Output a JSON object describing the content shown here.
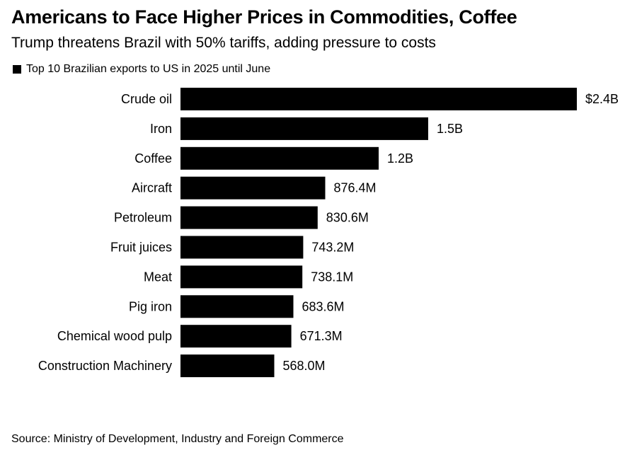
{
  "title": "Americans to Face Higher Prices in Commodities, Coffee",
  "subtitle": "Trump threatens Brazil with 50% tariffs, adding pressure to costs",
  "source": "Source: Ministry of Development, Industry and Foreign Commerce",
  "colors": {
    "bar": "#000000",
    "text": "#000000",
    "background": "#ffffff"
  },
  "chart_data": {
    "type": "bar",
    "orientation": "horizontal",
    "title": "Americans to Face Higher Prices in Commodities, Coffee",
    "subtitle": "Trump threatens Brazil with 50% tariffs, adding pressure to costs",
    "xlabel": "",
    "ylabel": "",
    "grid": false,
    "legend_position": "top-left",
    "categories": [
      "Crude oil",
      "Iron",
      "Coffee",
      "Aircraft",
      "Petroleum",
      "Fruit juices",
      "Meat",
      "Pig iron",
      "Chemical wood pulp",
      "Construction Machinery"
    ],
    "series": [
      {
        "name": "Top 10 Brazilian exports to US in 2025 until June",
        "color": "#000000",
        "values": [
          2.4,
          1.5,
          1.2,
          0.8764,
          0.8306,
          0.7432,
          0.7381,
          0.6836,
          0.6713,
          0.568
        ],
        "labels": [
          "$2.4B",
          "1.5B",
          "1.2B",
          "876.4M",
          "830.6M",
          "743.2M",
          "738.1M",
          "683.6M",
          "671.3M",
          "568.0M"
        ]
      }
    ],
    "unit": "USD billions",
    "xlim": [
      0,
      2.4
    ]
  }
}
